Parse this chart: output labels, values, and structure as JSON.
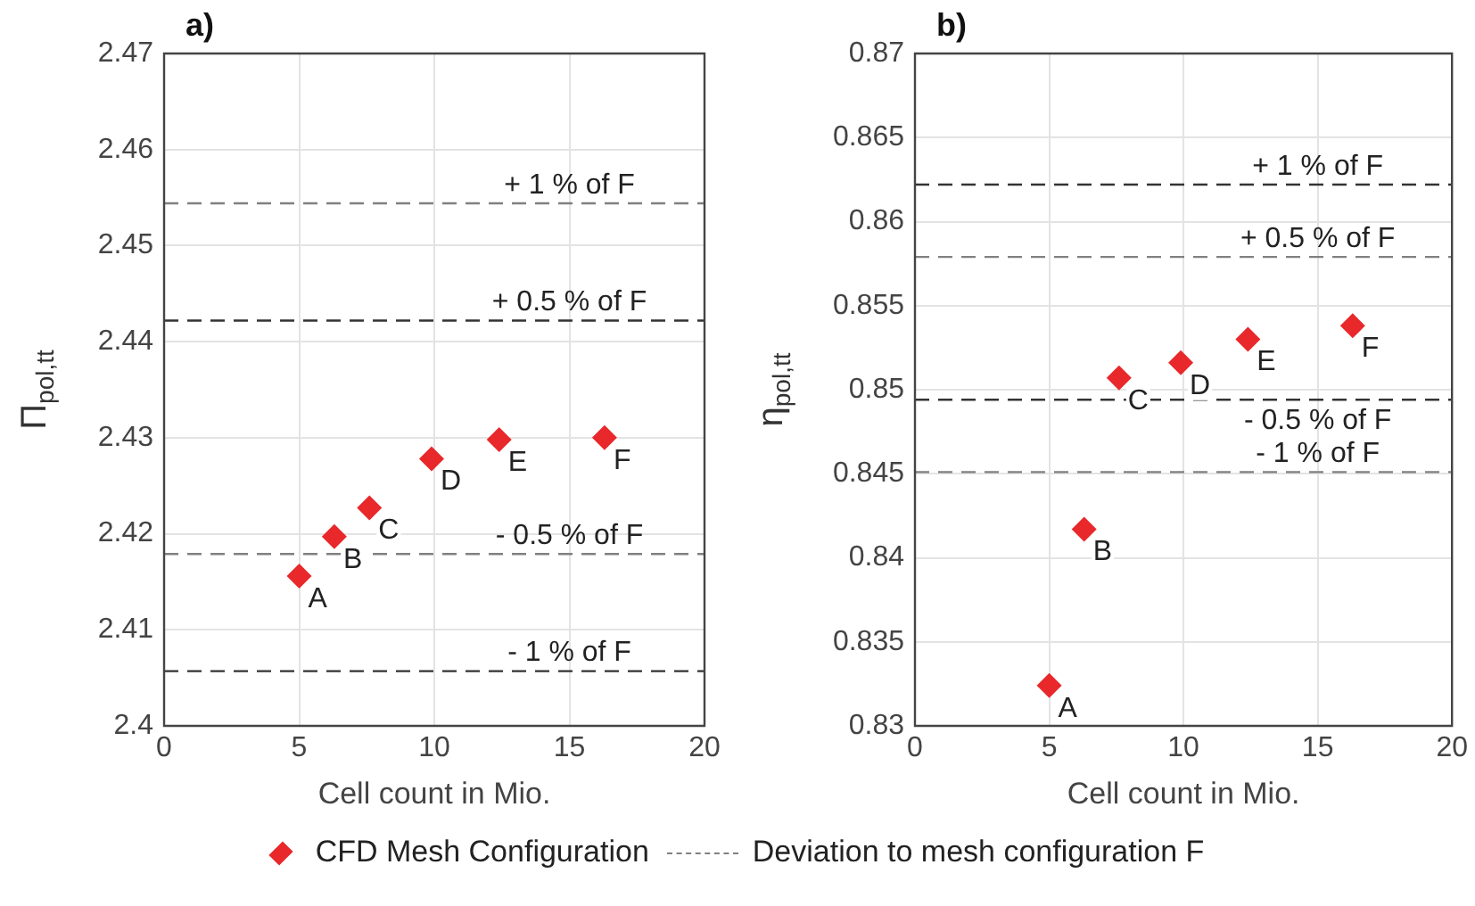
{
  "chart_data": [
    {
      "type": "scatter",
      "title": "a)",
      "xlabel": "Cell count in Mio.",
      "ylabel": "Π$_{pol,tt}$",
      "x": [
        5,
        6.3,
        7.6,
        9.9,
        12.4,
        16.3
      ],
      "series": [
        {
          "name": "CFD Mesh Configuration",
          "color": "#e8282b",
          "values": [
            2.4156,
            2.4197,
            2.4227,
            2.4278,
            2.4298,
            2.43
          ]
        }
      ],
      "xlim": [
        0,
        20
      ],
      "xticks": [
        0,
        5,
        10,
        15,
        20
      ],
      "ylim": [
        2.4,
        2.47
      ],
      "yticks": [
        2.4,
        2.41,
        2.42,
        2.43,
        2.44,
        2.45,
        2.46,
        2.47
      ],
      "grid": true,
      "marker": "diamond",
      "legend": "bottom",
      "ref_lines": [
        {
          "axis": "y",
          "value": 2.4544,
          "label": "+ 1 % of F",
          "color": "#808080",
          "line_style": "dashed"
        },
        {
          "axis": "y",
          "value": 2.4422,
          "label": "+ 0.5 % of F",
          "color": "#333333",
          "line_style": "dashed"
        },
        {
          "axis": "y",
          "value": 2.4179,
          "label": "- 0.5 % of F",
          "color": "#808080",
          "line_style": "dashed"
        },
        {
          "axis": "y",
          "value": 2.4057,
          "label": "- 1 % of F",
          "color": "#333333",
          "line_style": "dashed"
        }
      ],
      "annotations": [
        {
          "text": "A",
          "x": 5,
          "y": 2.4156
        },
        {
          "text": "B",
          "x": 6.3,
          "y": 2.4197
        },
        {
          "text": "C",
          "x": 7.6,
          "y": 2.4227
        },
        {
          "text": "D",
          "x": 9.9,
          "y": 2.4278
        },
        {
          "text": "E",
          "x": 12.4,
          "y": 2.4298
        },
        {
          "text": "F",
          "x": 16.3,
          "y": 2.43
        },
        "Deviation to mesh configuration F"
      ]
    },
    {
      "type": "scatter",
      "title": "b)",
      "xlabel": "Cell count in Mio.",
      "ylabel": "η$_{pol,tt}$",
      "x": [
        5,
        6.3,
        7.6,
        9.9,
        12.4,
        16.3
      ],
      "series": [
        {
          "color": "#e8282b",
          "values": [
            0.8324,
            0.8417,
            0.8507,
            0.8516,
            0.853,
            0.8538
          ]
        }
      ],
      "xlim": [
        0,
        20
      ],
      "xticks": [
        0,
        5,
        10,
        15,
        20
      ],
      "ylim": [
        0.83,
        0.87
      ],
      "yticks": [
        0.83,
        0.835,
        0.84,
        0.845,
        0.85,
        0.855,
        0.86,
        0.865,
        0.87
      ],
      "grid": true,
      "marker": "diamond",
      "ref_lines": [
        {
          "axis": "y",
          "value": 0.8622,
          "label": "+ 1 % of F",
          "color": "#333333",
          "line_style": "dashed"
        },
        {
          "axis": "y",
          "value": 0.8579,
          "label": "+ 0.5 % of F",
          "color": "#808080",
          "line_style": "dashed"
        },
        {
          "axis": "y",
          "value": 0.8494,
          "label": "- 0.5 % of F",
          "color": "#333333",
          "line_style": "dashed"
        },
        {
          "axis": "y",
          "value": 0.8451,
          "label": "- 1 % of F",
          "color": "#808080",
          "line_style": "dashed"
        }
      ],
      "annotations": [
        {
          "text": "A",
          "x": 5,
          "y": 0.8324
        },
        {
          "text": "B",
          "x": 6.3,
          "y": 0.8417
        },
        {
          "text": "C",
          "x": 7.6,
          "y": 0.8507
        },
        {
          "text": "D",
          "x": 9.9,
          "y": 0.8516
        },
        {
          "text": "E",
          "x": 12.4,
          "y": 0.853
        },
        {
          "text": "F",
          "x": 16.3,
          "y": 0.8538
        }
      ]
    }
  ]
}
